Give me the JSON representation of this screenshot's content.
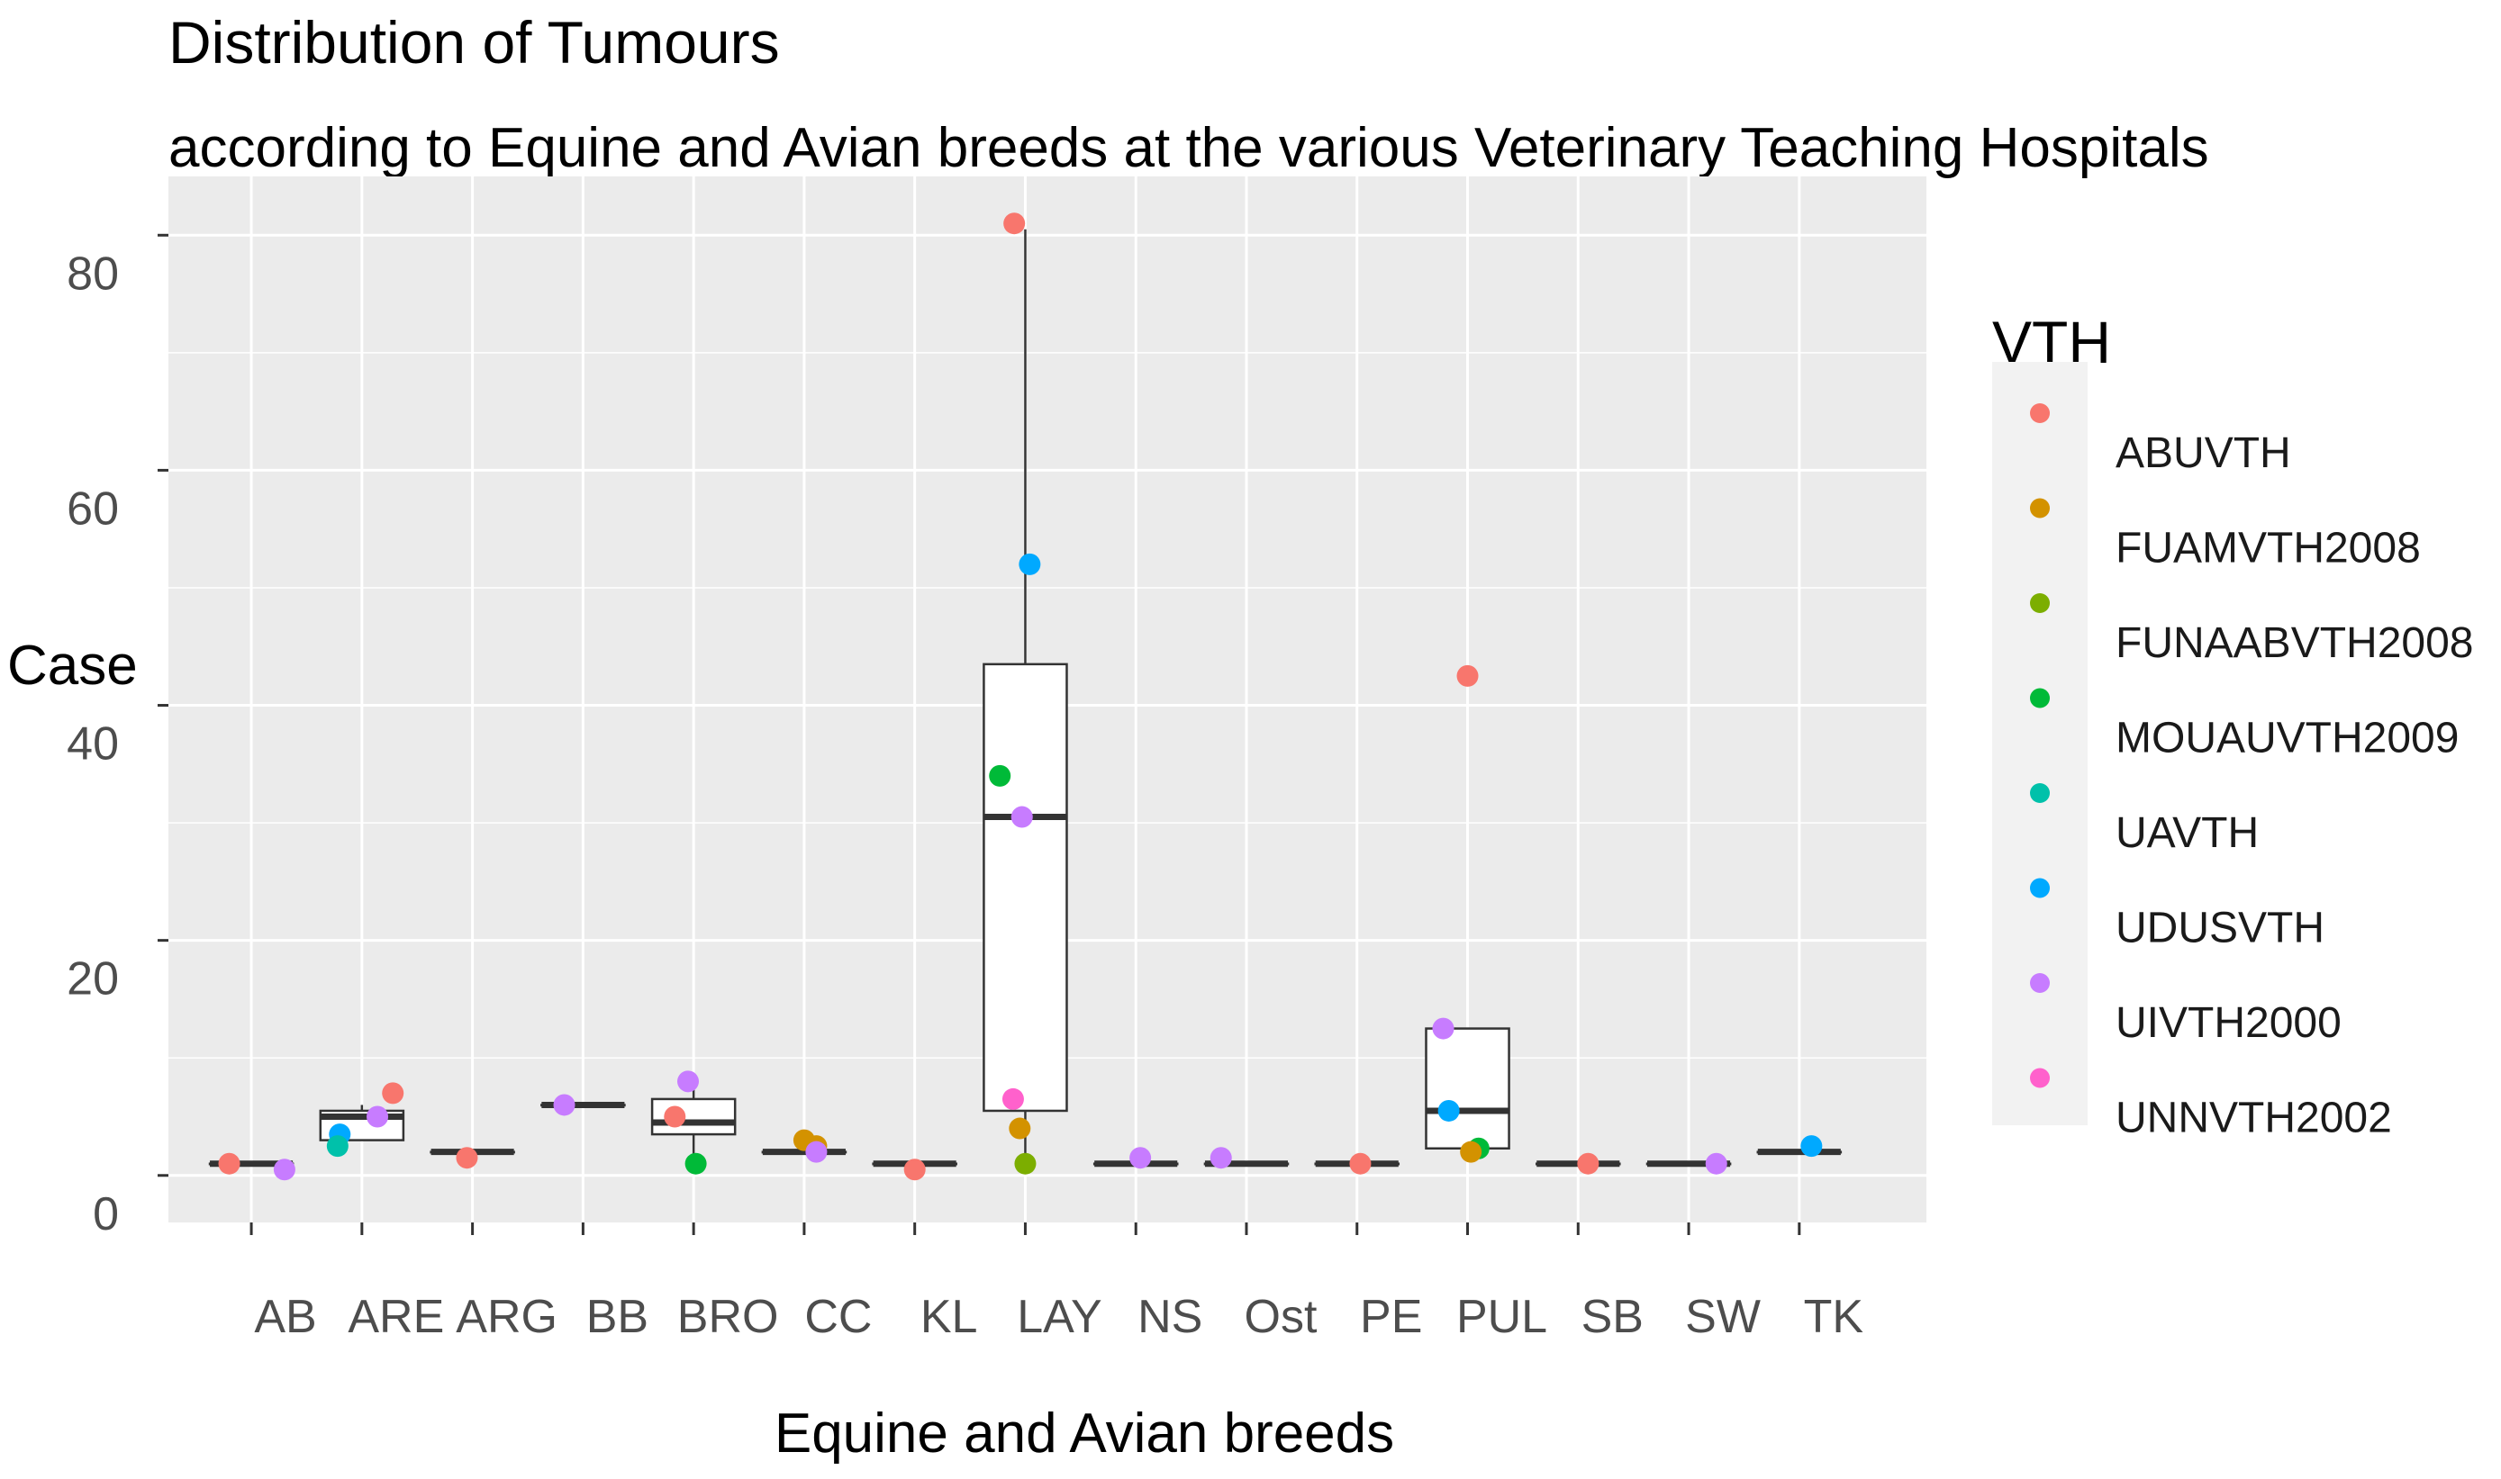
{
  "chart_data": {
    "type": "box+jitter",
    "title": "Distribution of Tumours",
    "subtitle": "according to Equine and Avian breeds at the various Veterinary Teaching Hospitals",
    "xlabel": "Equine and Avian breeds",
    "ylabel": "Case",
    "ylim": [
      -4,
      85
    ],
    "yticks": [
      0,
      20,
      40,
      60,
      80
    ],
    "categories": [
      "AB",
      "ARE",
      "ARG",
      "BB",
      "BRO",
      "CC",
      "KL",
      "LAY",
      "NS",
      "Ost",
      "PE",
      "PUL",
      "SB",
      "SW",
      "TK"
    ],
    "x_tick_labels": [
      {
        "category": "AB",
        "text": "AB"
      },
      {
        "category": "ARE",
        "text": "ARE"
      },
      {
        "category": "ARG",
        "text": "ARG"
      },
      {
        "category": "BB",
        "text": "BB"
      },
      {
        "category": "BRO",
        "text": "BRO"
      },
      {
        "category": "CC",
        "text": "CC"
      },
      {
        "category": "KL",
        "text": "KL"
      },
      {
        "category": "LAY",
        "text": "LAY"
      },
      {
        "category": "NS",
        "text": "NS"
      },
      {
        "category": "Ost",
        "text": "Ost"
      },
      {
        "category": "PE",
        "text": "PE"
      },
      {
        "category": "PUL",
        "text": "PUL"
      },
      {
        "category": "SB",
        "text": "SB"
      },
      {
        "category": "SW",
        "text": "SW"
      },
      {
        "category": "TK",
        "text": "TK"
      }
    ],
    "legend": {
      "title": "VTH",
      "position": "right",
      "entries": [
        {
          "name": "ABUVTH",
          "color": "#F8766D"
        },
        {
          "name": "FUAMVTH2008",
          "color": "#D39200"
        },
        {
          "name": "FUNAABVTH2008",
          "color": "#7CAE00"
        },
        {
          "name": "MOUAUVTH2009",
          "color": "#00BA38"
        },
        {
          "name": "UAVTH",
          "color": "#00C1AA"
        },
        {
          "name": "UDUSVTH",
          "color": "#00A9FF"
        },
        {
          "name": "UIVTH2000",
          "color": "#C77CFF"
        },
        {
          "name": "UNNVTH2002",
          "color": "#FF61CC"
        }
      ]
    },
    "boxes": [
      {
        "category": "AB",
        "q1": 1,
        "median": 1,
        "q3": 1,
        "min": 1,
        "max": 1
      },
      {
        "category": "ARE",
        "q1": 3,
        "median": 5,
        "q3": 5.5,
        "min": 3,
        "max": 6
      },
      {
        "category": "ARG",
        "q1": 2,
        "median": 2,
        "q3": 2,
        "min": 2,
        "max": 2
      },
      {
        "category": "BB",
        "q1": 6,
        "median": 6,
        "q3": 6,
        "min": 6,
        "max": 6
      },
      {
        "category": "BRO",
        "q1": 3.5,
        "median": 4.5,
        "q3": 6.5,
        "min": 1.5,
        "max": 8
      },
      {
        "category": "CC",
        "q1": 2,
        "median": 2,
        "q3": 2,
        "min": 2,
        "max": 2
      },
      {
        "category": "KL",
        "q1": 1,
        "median": 1,
        "q3": 1,
        "min": 1,
        "max": 1
      },
      {
        "category": "LAY",
        "q1": 5.5,
        "median": 30.5,
        "q3": 43.5,
        "min": 1,
        "max": 80.5
      },
      {
        "category": "NS",
        "q1": 1,
        "median": 1,
        "q3": 1,
        "min": 1,
        "max": 1
      },
      {
        "category": "Ost",
        "q1": 1,
        "median": 1,
        "q3": 1,
        "min": 1,
        "max": 1
      },
      {
        "category": "PE",
        "q1": 1,
        "median": 1,
        "q3": 1,
        "min": 1,
        "max": 1
      },
      {
        "category": "PUL",
        "q1": 2.3,
        "median": 5.5,
        "q3": 12.5,
        "min": 2.3,
        "max": 12.5
      },
      {
        "category": "SB",
        "q1": 1,
        "median": 1,
        "q3": 1,
        "min": 1,
        "max": 1
      },
      {
        "category": "SW",
        "q1": 1,
        "median": 1,
        "q3": 1,
        "min": 1,
        "max": 1
      },
      {
        "category": "TK",
        "q1": 2,
        "median": 2,
        "q3": 2,
        "min": 2,
        "max": 2
      }
    ],
    "points": [
      {
        "category": "AB",
        "offset": -0.2,
        "value": 1,
        "series": "ABUVTH"
      },
      {
        "category": "AB",
        "offset": 0.3,
        "value": 0.5,
        "series": "UIVTH2000"
      },
      {
        "category": "ARE",
        "offset": 0.28,
        "value": 7,
        "series": "ABUVTH"
      },
      {
        "category": "ARE",
        "offset": 0.14,
        "value": 5,
        "series": "UIVTH2000"
      },
      {
        "category": "ARE",
        "offset": -0.2,
        "value": 3.5,
        "series": "UDUSVTH"
      },
      {
        "category": "ARE",
        "offset": -0.22,
        "value": 2.5,
        "series": "UAVTH"
      },
      {
        "category": "ARG",
        "offset": -0.05,
        "value": 1.5,
        "series": "ABUVTH"
      },
      {
        "category": "BB",
        "offset": -0.17,
        "value": 6,
        "series": "UIVTH2000"
      },
      {
        "category": "BRO",
        "offset": -0.05,
        "value": 8,
        "series": "UIVTH2000"
      },
      {
        "category": "BRO",
        "offset": -0.17,
        "value": 5,
        "series": "ABUVTH"
      },
      {
        "category": "BRO",
        "offset": 0.02,
        "value": 1,
        "series": "MOUAUVTH2009"
      },
      {
        "category": "CC",
        "offset": 0.0,
        "value": 3,
        "series": "FUAMVTH2008"
      },
      {
        "category": "CC",
        "offset": 0.11,
        "value": 2.5,
        "series": "FUAMVTH2008"
      },
      {
        "category": "CC",
        "offset": 0.11,
        "value": 2,
        "series": "UIVTH2000"
      },
      {
        "category": "KL",
        "offset": 0.0,
        "value": 0.5,
        "series": "ABUVTH"
      },
      {
        "category": "LAY",
        "offset": -0.1,
        "value": 81,
        "series": "ABUVTH"
      },
      {
        "category": "LAY",
        "offset": 0.04,
        "value": 52,
        "series": "UDUSVTH"
      },
      {
        "category": "LAY",
        "offset": -0.23,
        "value": 34,
        "series": "MOUAUVTH2009"
      },
      {
        "category": "LAY",
        "offset": -0.03,
        "value": 30.5,
        "series": "UIVTH2000"
      },
      {
        "category": "LAY",
        "offset": -0.11,
        "value": 6.5,
        "series": "UNNVTH2002"
      },
      {
        "category": "LAY",
        "offset": -0.05,
        "value": 4,
        "series": "FUAMVTH2008"
      },
      {
        "category": "LAY",
        "offset": 0.0,
        "value": 1,
        "series": "FUNAABVTH2008"
      },
      {
        "category": "NS",
        "offset": 0.04,
        "value": 1.5,
        "series": "UIVTH2000"
      },
      {
        "category": "Ost",
        "offset": -0.23,
        "value": 1.5,
        "series": "UIVTH2000"
      },
      {
        "category": "PE",
        "offset": 0.03,
        "value": 1,
        "series": "ABUVTH"
      },
      {
        "category": "PUL",
        "offset": 0.0,
        "value": 42.5,
        "series": "ABUVTH"
      },
      {
        "category": "PUL",
        "offset": -0.22,
        "value": 12.5,
        "series": "UIVTH2000"
      },
      {
        "category": "PUL",
        "offset": -0.17,
        "value": 5.5,
        "series": "UDUSVTH"
      },
      {
        "category": "PUL",
        "offset": 0.1,
        "value": 2.3,
        "series": "MOUAUVTH2009"
      },
      {
        "category": "PUL",
        "offset": 0.03,
        "value": 2,
        "series": "FUAMVTH2008"
      },
      {
        "category": "SB",
        "offset": 0.09,
        "value": 1,
        "series": "ABUVTH"
      },
      {
        "category": "SW",
        "offset": 0.25,
        "value": 1,
        "series": "UIVTH2000"
      },
      {
        "category": "TK",
        "offset": 0.11,
        "value": 2.5,
        "series": "UDUSVTH"
      }
    ]
  }
}
